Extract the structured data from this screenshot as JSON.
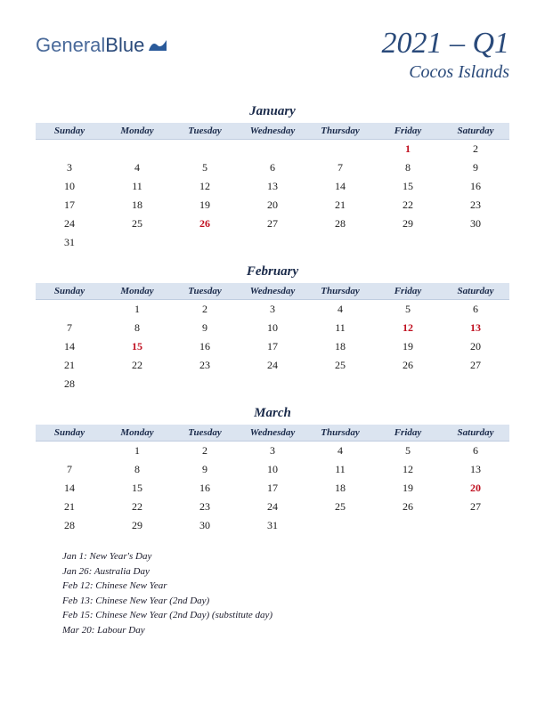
{
  "logo": {
    "text1": "General",
    "text2": "Blue"
  },
  "title": {
    "quarter": "2021 – Q1",
    "region": "Cocos Islands"
  },
  "colors": {
    "header_bg": "#dbe4f0",
    "accent": "#2a4a7a",
    "holiday": "#c01020",
    "text": "#1a1a1a",
    "page_bg": "#ffffff"
  },
  "day_headers": [
    "Sunday",
    "Monday",
    "Tuesday",
    "Wednesday",
    "Thursday",
    "Friday",
    "Saturday"
  ],
  "months": [
    {
      "name": "January",
      "weeks": [
        [
          "",
          "",
          "",
          "",
          "",
          "1",
          "2"
        ],
        [
          "3",
          "4",
          "5",
          "6",
          "7",
          "8",
          "9"
        ],
        [
          "10",
          "11",
          "12",
          "13",
          "14",
          "15",
          "16"
        ],
        [
          "17",
          "18",
          "19",
          "20",
          "21",
          "22",
          "23"
        ],
        [
          "24",
          "25",
          "26",
          "27",
          "28",
          "29",
          "30"
        ],
        [
          "31",
          "",
          "",
          "",
          "",
          "",
          ""
        ]
      ],
      "holidays": [
        "1",
        "26"
      ]
    },
    {
      "name": "February",
      "weeks": [
        [
          "",
          "1",
          "2",
          "3",
          "4",
          "5",
          "6"
        ],
        [
          "7",
          "8",
          "9",
          "10",
          "11",
          "12",
          "13"
        ],
        [
          "14",
          "15",
          "16",
          "17",
          "18",
          "19",
          "20"
        ],
        [
          "21",
          "22",
          "23",
          "24",
          "25",
          "26",
          "27"
        ],
        [
          "28",
          "",
          "",
          "",
          "",
          "",
          ""
        ]
      ],
      "holidays": [
        "12",
        "13",
        "15"
      ]
    },
    {
      "name": "March",
      "weeks": [
        [
          "",
          "1",
          "2",
          "3",
          "4",
          "5",
          "6"
        ],
        [
          "7",
          "8",
          "9",
          "10",
          "11",
          "12",
          "13"
        ],
        [
          "14",
          "15",
          "16",
          "17",
          "18",
          "19",
          "20"
        ],
        [
          "21",
          "22",
          "23",
          "24",
          "25",
          "26",
          "27"
        ],
        [
          "28",
          "29",
          "30",
          "31",
          "",
          "",
          ""
        ]
      ],
      "holidays": [
        "20"
      ]
    }
  ],
  "holiday_list": [
    "Jan 1: New Year's Day",
    "Jan 26: Australia Day",
    "Feb 12: Chinese New Year",
    "Feb 13: Chinese New Year (2nd Day)",
    "Feb 15: Chinese New Year (2nd Day) (substitute day)",
    "Mar 20: Labour Day"
  ]
}
